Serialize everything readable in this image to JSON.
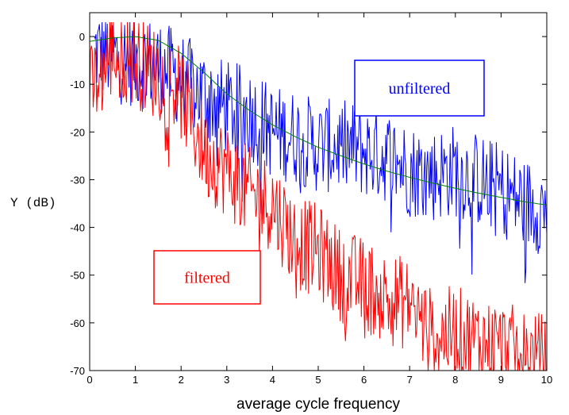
{
  "chart_data": {
    "type": "line",
    "xlabel": "average cycle frequency",
    "ylabel": "Y (dB)",
    "xlim": [
      0,
      10
    ],
    "ylim": [
      -70,
      5
    ],
    "x_ticks": [
      0,
      1,
      2,
      3,
      4,
      5,
      6,
      7,
      8,
      9,
      10
    ],
    "y_ticks": [
      0,
      -10,
      -20,
      -30,
      -40,
      -50,
      -60,
      -70
    ],
    "grid": false,
    "colors": {
      "unfiltered": "#0000ff",
      "filtered": "#ff0000",
      "smooth": "#008000"
    },
    "series": [
      {
        "name": "unfiltered",
        "x": [
          0.1,
          0.5,
          1,
          1.5,
          2,
          2.5,
          3,
          3.5,
          4,
          4.5,
          5,
          5.5,
          6,
          6.5,
          7,
          7.5,
          8,
          8.5,
          9,
          9.5,
          10
        ],
        "values": [
          -3,
          -4,
          -5,
          -6,
          -9,
          -12,
          -15,
          -16,
          -20,
          -21,
          -23,
          -23,
          -24,
          -25,
          -28,
          -29,
          -28,
          -30,
          -32,
          -35,
          -36
        ]
      },
      {
        "x": [
          0,
          0.5,
          1,
          1.5,
          2,
          2.5,
          3,
          3.5,
          4,
          4.5,
          5,
          5.5,
          6,
          6.5,
          7,
          7.5,
          8,
          8.5,
          9,
          9.5,
          10
        ],
        "values": [
          -1,
          -0.3,
          0,
          -0.8,
          -3.5,
          -7.5,
          -12,
          -15.5,
          -18.5,
          -21,
          -23.2,
          -25,
          -26.7,
          -28.2,
          -29.5,
          -30.7,
          -31.8,
          -32.8,
          -33.7,
          -34.6,
          -35.3
        ]
      },
      {
        "name": "filtered",
        "x": [
          0,
          0.5,
          1,
          1.5,
          2,
          2.5,
          3,
          3.5,
          4,
          4.5,
          5,
          5.5,
          6,
          6.5,
          7,
          7.5,
          8,
          8.5,
          9,
          9.5,
          10
        ],
        "values": [
          -12,
          -3,
          -5,
          -8,
          -12,
          -24,
          -28,
          -33,
          -35,
          -43,
          -45,
          -50,
          -52,
          -55,
          -56,
          -63,
          -62,
          -64,
          -65,
          -67,
          -68
        ]
      }
    ],
    "annotations": [
      {
        "text": "unfiltered",
        "color": "#0000ff"
      },
      {
        "text": "filtered",
        "color": "#ff0000"
      }
    ]
  }
}
